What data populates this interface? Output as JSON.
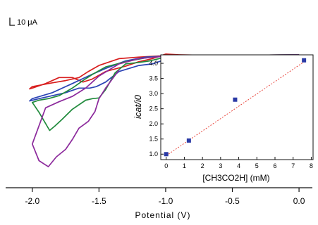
{
  "chart_data": [
    {
      "type": "line",
      "name": "cyclic-voltammograms",
      "xlabel": "Potential (V)",
      "ylabel": "",
      "xlim": [
        -2.2,
        0.1
      ],
      "ylim": [
        -160,
        40
      ],
      "x_ticks": [
        -2.0,
        -1.5,
        -1.0,
        -0.5,
        0.0
      ],
      "x_tick_labels": [
        "-2.0",
        "-1.5",
        "-1.0",
        "-0.5",
        "0.0"
      ],
      "scale_bar": {
        "label": "10 μA",
        "value": 10
      },
      "grid": false,
      "series": [
        {
          "color": "#d81e1e",
          "x": [
            0.0,
            -0.3,
            -0.6,
            -0.9,
            -1.05,
            -1.2,
            -1.35,
            -1.5,
            -1.58,
            -1.65,
            -1.75,
            -1.85,
            -2.0,
            -2.02,
            -2.0,
            -1.9,
            -1.8,
            -1.7,
            -1.62,
            -1.55,
            -1.45,
            -1.3,
            -1.2,
            -1.1,
            -1.0,
            -0.9,
            -0.6,
            -0.3,
            0.0
          ],
          "y": [
            0,
            -0.5,
            -1,
            -1,
            -1.5,
            -3,
            -5,
            -14,
            -22,
            -30,
            -34,
            -37,
            -42,
            -45,
            -44,
            -38,
            -30,
            -30,
            -36,
            -32,
            -22,
            -15,
            -9,
            -5,
            1,
            0,
            -1,
            -1,
            0
          ]
        },
        {
          "color": "#2b43b5",
          "x": [
            0.0,
            -0.3,
            -0.6,
            -0.9,
            -1.05,
            -1.15,
            -1.3,
            -1.45,
            -1.58,
            -1.7,
            -1.85,
            -2.0,
            -2.02,
            -1.95,
            -1.85,
            -1.75,
            -1.65,
            -1.57,
            -1.52,
            -1.45,
            -1.35,
            -1.2,
            -1.1,
            -1.0,
            -0.9,
            -0.6,
            -0.3,
            0.0
          ],
          "y": [
            0,
            -0.5,
            -1,
            -2,
            -2,
            -3,
            -8,
            -18,
            -28,
            -38,
            -50,
            -58,
            -61,
            -58,
            -54,
            -50,
            -44,
            -44,
            -42,
            -36,
            -22,
            -14,
            -12,
            -6,
            -2,
            -1,
            -1,
            0
          ]
        },
        {
          "color": "#1f8a3b",
          "x": [
            0.0,
            -0.3,
            -0.6,
            -0.9,
            -1.05,
            -1.15,
            -1.3,
            -1.45,
            -1.55,
            -1.62,
            -1.7,
            -1.8,
            -1.88,
            -1.95,
            -2.0,
            -1.95,
            -1.87,
            -1.83,
            -1.78,
            -1.7,
            -1.6,
            -1.55,
            -1.5,
            -1.45,
            -1.38,
            -1.3,
            -1.2,
            -1.12,
            -1.0,
            -0.9,
            -0.6,
            -0.3,
            0.0
          ],
          "y": [
            0,
            -0.5,
            -1,
            -2,
            -2.5,
            -4,
            -9,
            -16,
            -26,
            -34,
            -44,
            -54,
            -58,
            -60,
            -63,
            -76,
            -100,
            -94,
            -86,
            -72,
            -60,
            -58,
            -57,
            -46,
            -24,
            -12,
            -10,
            -8,
            -3,
            -2,
            -1,
            -1,
            0
          ]
        },
        {
          "color": "#8c2a9c",
          "x": [
            0.0,
            -0.3,
            -0.6,
            -0.9,
            -1.05,
            -1.2,
            -1.35,
            -1.5,
            -1.6,
            -1.7,
            -1.8,
            -1.9,
            -2.0,
            -1.95,
            -1.88,
            -1.82,
            -1.75,
            -1.7,
            -1.65,
            -1.58,
            -1.53,
            -1.5,
            -1.45,
            -1.35
          ],
          "y": [
            0,
            -0.5,
            -1,
            -2,
            -2.5,
            -5,
            -12,
            -28,
            -44,
            -55,
            -62,
            -70,
            -118,
            -140,
            -148,
            -135,
            -125,
            -112,
            -97,
            -88,
            -75,
            -58,
            -44,
            -20
          ]
        }
      ]
    },
    {
      "type": "scatter",
      "name": "inset-icat-vs-acid",
      "xlabel": "[CH3CO2H] (mM)",
      "ylabel": "icat/i0",
      "xlim": [
        -0.3,
        8.1
      ],
      "ylim": [
        0.82,
        4.28
      ],
      "x_ticks": [
        0,
        1,
        2,
        3,
        4,
        5,
        6,
        7,
        8
      ],
      "x_tick_labels": [
        "0",
        "1",
        "2",
        "3",
        "4",
        "5",
        "6",
        "7",
        "8"
      ],
      "y_ticks": [
        1.0,
        1.5,
        2.0,
        2.5,
        3.0,
        3.5,
        4.0
      ],
      "y_tick_labels": [
        "1.0",
        "1.5",
        "2.0",
        "2.5",
        "3.0",
        "3.5",
        "4.0"
      ],
      "points_color": "#2b3aa5",
      "fit_color": "#e8453c",
      "x": [
        0.0,
        1.25,
        3.8,
        7.6
      ],
      "y": [
        1.0,
        1.45,
        2.8,
        4.1
      ],
      "fit": {
        "x": [
          0.0,
          7.6
        ],
        "y": [
          0.95,
          4.05
        ]
      }
    }
  ]
}
